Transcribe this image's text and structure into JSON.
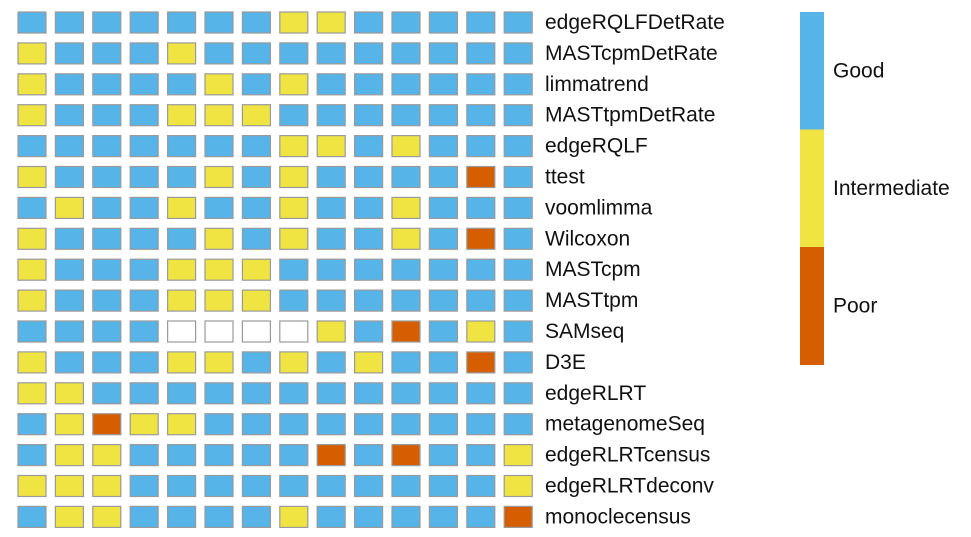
{
  "chart_data": {
    "type": "heatmap",
    "rows": [
      "edgeRQLFDetRate",
      "MASTcpmDetRate",
      "limmatrend",
      "MASTtpmDetRate",
      "edgeRQLF",
      "ttest",
      "voomlimma",
      "Wilcoxon",
      "MASTcpm",
      "MASTtpm",
      "SAMseq",
      "D3E",
      "edgeRLRT",
      "metagenomeSeq",
      "edgeRLRTcensus",
      "edgeRLRTdeconv",
      "monoclecensus"
    ],
    "values": [
      [
        "Good",
        "Good",
        "Good",
        "Good",
        "Good",
        "Good",
        "Good",
        "Intermediate",
        "Intermediate",
        "Good",
        "Good",
        "Good",
        "Good",
        "Good"
      ],
      [
        "Intermediate",
        "Good",
        "Good",
        "Good",
        "Intermediate",
        "Good",
        "Good",
        "Good",
        "Good",
        "Good",
        "Good",
        "Good",
        "Good",
        "Good"
      ],
      [
        "Intermediate",
        "Good",
        "Good",
        "Good",
        "Good",
        "Intermediate",
        "Good",
        "Intermediate",
        "Good",
        "Good",
        "Good",
        "Good",
        "Good",
        "Good"
      ],
      [
        "Intermediate",
        "Good",
        "Good",
        "Good",
        "Intermediate",
        "Intermediate",
        "Intermediate",
        "Good",
        "Good",
        "Good",
        "Good",
        "Good",
        "Good",
        "Good"
      ],
      [
        "Good",
        "Good",
        "Good",
        "Good",
        "Good",
        "Good",
        "Good",
        "Intermediate",
        "Intermediate",
        "Good",
        "Intermediate",
        "Good",
        "Good",
        "Good"
      ],
      [
        "Intermediate",
        "Good",
        "Good",
        "Good",
        "Good",
        "Intermediate",
        "Good",
        "Intermediate",
        "Good",
        "Good",
        "Good",
        "Good",
        "Poor",
        "Good"
      ],
      [
        "Good",
        "Intermediate",
        "Good",
        "Good",
        "Intermediate",
        "Good",
        "Good",
        "Intermediate",
        "Good",
        "Good",
        "Intermediate",
        "Good",
        "Good",
        "Good"
      ],
      [
        "Intermediate",
        "Good",
        "Good",
        "Good",
        "Good",
        "Intermediate",
        "Good",
        "Intermediate",
        "Good",
        "Good",
        "Intermediate",
        "Good",
        "Poor",
        "Good"
      ],
      [
        "Intermediate",
        "Good",
        "Good",
        "Good",
        "Intermediate",
        "Intermediate",
        "Intermediate",
        "Good",
        "Good",
        "Good",
        "Good",
        "Good",
        "Good",
        "Good"
      ],
      [
        "Intermediate",
        "Good",
        "Good",
        "Good",
        "Intermediate",
        "Intermediate",
        "Intermediate",
        "Good",
        "Good",
        "Good",
        "Good",
        "Good",
        "Good",
        "Good"
      ],
      [
        "Good",
        "Good",
        "Good",
        "Good",
        "NA",
        "NA",
        "NA",
        "NA",
        "Intermediate",
        "Good",
        "Poor",
        "Good",
        "Intermediate",
        "Good"
      ],
      [
        "Intermediate",
        "Good",
        "Good",
        "Good",
        "Intermediate",
        "Intermediate",
        "Good",
        "Intermediate",
        "Good",
        "Intermediate",
        "Good",
        "Good",
        "Poor",
        "Good"
      ],
      [
        "Intermediate",
        "Intermediate",
        "Good",
        "Good",
        "Good",
        "Good",
        "Good",
        "Good",
        "Good",
        "Good",
        "Good",
        "Good",
        "Good",
        "Good"
      ],
      [
        "Good",
        "Intermediate",
        "Poor",
        "Intermediate",
        "Intermediate",
        "Good",
        "Good",
        "Good",
        "Good",
        "Good",
        "Good",
        "Good",
        "Good",
        "Good"
      ],
      [
        "Good",
        "Intermediate",
        "Intermediate",
        "Good",
        "Good",
        "Good",
        "Good",
        "Good",
        "Poor",
        "Good",
        "Poor",
        "Good",
        "Good",
        "Intermediate"
      ],
      [
        "Intermediate",
        "Intermediate",
        "Intermediate",
        "Good",
        "Good",
        "Good",
        "Good",
        "Good",
        "Good",
        "Good",
        "Good",
        "Good",
        "Good",
        "Intermediate"
      ],
      [
        "Good",
        "Intermediate",
        "Intermediate",
        "Good",
        "Good",
        "Good",
        "Good",
        "Intermediate",
        "Good",
        "Good",
        "Good",
        "Good",
        "Good",
        "Poor"
      ]
    ],
    "categories": [
      "Good",
      "Intermediate",
      "Poor"
    ],
    "colors": {
      "Good": "#56b4e9",
      "Intermediate": "#f0e442",
      "Poor": "#d55e00",
      "NA": "#ffffff",
      "cell_border": "#9a9a9a"
    },
    "legend": {
      "placement": "right",
      "items": [
        {
          "label": "Good",
          "color": "#56b4e9"
        },
        {
          "label": "Intermediate",
          "color": "#f0e442"
        },
        {
          "label": "Poor",
          "color": "#d55e00"
        }
      ]
    },
    "title": "",
    "xlabel": "",
    "ylabel": ""
  }
}
